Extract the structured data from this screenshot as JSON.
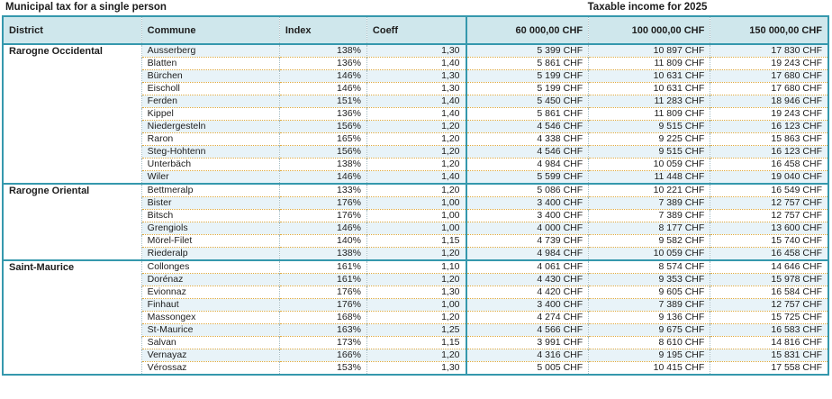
{
  "titles": {
    "left": "Municipal tax for a single person",
    "right": "Taxable income for 2025"
  },
  "colors": {
    "accent_teal": "#3598ad",
    "header_background": "#cfe7ec",
    "alt_row_background": "#e8f3f8",
    "row_separator_gold": "#dfa93e"
  },
  "table": {
    "columns": [
      "District",
      "Commune",
      "Index",
      "Coeff",
      "60 000,00 CHF",
      "100 000,00 CHF",
      "150 000,00 CHF"
    ],
    "sections": [
      {
        "district": "Rarogne Occidental",
        "rows": [
          {
            "commune": "Ausserberg",
            "index": "138%",
            "coeff": "1,30",
            "chf60": "5 399 CHF",
            "chf100": "10 897 CHF",
            "chf150": "17 830 CHF"
          },
          {
            "commune": "Blatten",
            "index": "136%",
            "coeff": "1,40",
            "chf60": "5 861 CHF",
            "chf100": "11 809 CHF",
            "chf150": "19 243 CHF"
          },
          {
            "commune": "Bürchen",
            "index": "146%",
            "coeff": "1,30",
            "chf60": "5 199 CHF",
            "chf100": "10 631 CHF",
            "chf150": "17 680 CHF"
          },
          {
            "commune": "Eischoll",
            "index": "146%",
            "coeff": "1,30",
            "chf60": "5 199 CHF",
            "chf100": "10 631 CHF",
            "chf150": "17 680 CHF"
          },
          {
            "commune": "Ferden",
            "index": "151%",
            "coeff": "1,40",
            "chf60": "5 450 CHF",
            "chf100": "11 283 CHF",
            "chf150": "18 946 CHF"
          },
          {
            "commune": "Kippel",
            "index": "136%",
            "coeff": "1,40",
            "chf60": "5 861 CHF",
            "chf100": "11 809 CHF",
            "chf150": "19 243 CHF"
          },
          {
            "commune": "Niedergesteln",
            "index": "156%",
            "coeff": "1,20",
            "chf60": "4 546 CHF",
            "chf100": "9 515 CHF",
            "chf150": "16 123 CHF"
          },
          {
            "commune": "Raron",
            "index": "165%",
            "coeff": "1,20",
            "chf60": "4 338 CHF",
            "chf100": "9 225 CHF",
            "chf150": "15 863 CHF"
          },
          {
            "commune": "Steg-Hohtenn",
            "index": "156%",
            "coeff": "1,20",
            "chf60": "4 546 CHF",
            "chf100": "9 515 CHF",
            "chf150": "16 123 CHF"
          },
          {
            "commune": "Unterbäch",
            "index": "138%",
            "coeff": "1,20",
            "chf60": "4 984 CHF",
            "chf100": "10 059 CHF",
            "chf150": "16 458 CHF"
          },
          {
            "commune": "Wiler",
            "index": "146%",
            "coeff": "1,40",
            "chf60": "5 599 CHF",
            "chf100": "11 448 CHF",
            "chf150": "19 040 CHF"
          }
        ]
      },
      {
        "district": "Rarogne Oriental",
        "rows": [
          {
            "commune": "Bettmeralp",
            "index": "133%",
            "coeff": "1,20",
            "chf60": "5 086 CHF",
            "chf100": "10 221 CHF",
            "chf150": "16 549 CHF"
          },
          {
            "commune": "Bister",
            "index": "176%",
            "coeff": "1,00",
            "chf60": "3 400 CHF",
            "chf100": "7 389 CHF",
            "chf150": "12 757 CHF"
          },
          {
            "commune": "Bitsch",
            "index": "176%",
            "coeff": "1,00",
            "chf60": "3 400 CHF",
            "chf100": "7 389 CHF",
            "chf150": "12 757 CHF"
          },
          {
            "commune": "Grengiols",
            "index": "146%",
            "coeff": "1,00",
            "chf60": "4 000 CHF",
            "chf100": "8 177 CHF",
            "chf150": "13 600 CHF"
          },
          {
            "commune": "Mörel-Filet",
            "index": "140%",
            "coeff": "1,15",
            "chf60": "4 739 CHF",
            "chf100": "9 582 CHF",
            "chf150": "15 740 CHF"
          },
          {
            "commune": "Riederalp",
            "index": "138%",
            "coeff": "1,20",
            "chf60": "4 984 CHF",
            "chf100": "10 059 CHF",
            "chf150": "16 458 CHF"
          }
        ]
      },
      {
        "district": "Saint-Maurice",
        "rows": [
          {
            "commune": "Collonges",
            "index": "161%",
            "coeff": "1,10",
            "chf60": "4 061 CHF",
            "chf100": "8 574 CHF",
            "chf150": "14 646 CHF"
          },
          {
            "commune": "Dorénaz",
            "index": "161%",
            "coeff": "1,20",
            "chf60": "4 430 CHF",
            "chf100": "9 353 CHF",
            "chf150": "15 978 CHF"
          },
          {
            "commune": "Evionnaz",
            "index": "176%",
            "coeff": "1,30",
            "chf60": "4 420 CHF",
            "chf100": "9 605 CHF",
            "chf150": "16 584 CHF"
          },
          {
            "commune": "Finhaut",
            "index": "176%",
            "coeff": "1,00",
            "chf60": "3 400 CHF",
            "chf100": "7 389 CHF",
            "chf150": "12 757 CHF"
          },
          {
            "commune": "Massongex",
            "index": "168%",
            "coeff": "1,20",
            "chf60": "4 274 CHF",
            "chf100": "9 136 CHF",
            "chf150": "15 725 CHF"
          },
          {
            "commune": "St-Maurice",
            "index": "163%",
            "coeff": "1,25",
            "chf60": "4 566 CHF",
            "chf100": "9 675 CHF",
            "chf150": "16 583 CHF"
          },
          {
            "commune": "Salvan",
            "index": "173%",
            "coeff": "1,15",
            "chf60": "3 991 CHF",
            "chf100": "8 610 CHF",
            "chf150": "14 816 CHF"
          },
          {
            "commune": "Vernayaz",
            "index": "166%",
            "coeff": "1,20",
            "chf60": "4 316 CHF",
            "chf100": "9 195 CHF",
            "chf150": "15 831 CHF"
          },
          {
            "commune": "Vérossaz",
            "index": "153%",
            "coeff": "1,30",
            "chf60": "5 005 CHF",
            "chf100": "10 415 CHF",
            "chf150": "17 558 CHF"
          }
        ]
      }
    ]
  }
}
